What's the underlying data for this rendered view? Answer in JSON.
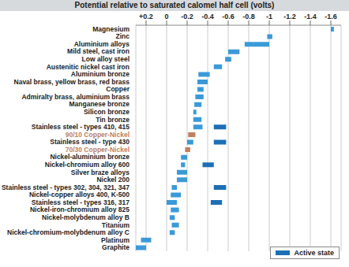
{
  "chart_data": {
    "type": "bar",
    "title": "Potential relative to saturated calomel half cell (volts)",
    "orientation": "horizontal",
    "categories": [
      "Magnesium",
      "Zinc",
      "Aluminium alloys",
      "Mild steel, cast iron",
      "Low alloy steel",
      "Austenitic nickel cast iron",
      "Aluminium bronze",
      "Naval brass, yellow brass, red brass",
      "Copper",
      "Admiralty brass, aluminium brass",
      "Manganese bronze",
      "Silicon bronze",
      "Tin bronze",
      "Stainless steel - types 410, 415",
      "90/10 Copper-Nickel",
      "Stainless steel - type 430",
      "70/30 Copper-Nickel",
      "Nickel-aluminium bronze",
      "Nickel-chromium alloy 600",
      "Silver braze alloys",
      "Nickel 200",
      "Stainless steel - types 302, 304, 321, 347",
      "Nickel-copper alloys 400, K-500",
      "Stainless steel - types 316, 317",
      "Nickel-iron-chromium alloy 825",
      "Nickel-molybdenum alloy B",
      "Titanium",
      "Nickel-chromium-molybdenum alloy C",
      "Platinum",
      "Graphite"
    ],
    "series": [
      {
        "color": "#3a9ad9",
        "colors": [
          "#3a9ad9",
          "#3a9ad9",
          "#3a9ad9",
          "#3a9ad9",
          "#3a9ad9",
          "#3a9ad9",
          "#3a9ad9",
          "#3a9ad9",
          "#3a9ad9",
          "#3a9ad9",
          "#3a9ad9",
          "#3a9ad9",
          "#3a9ad9",
          "#3a9ad9",
          "#c0805e",
          "#3a9ad9",
          "#c0805e",
          "#3a9ad9",
          "#3a9ad9",
          "#3a9ad9",
          "#3a9ad9",
          "#3a9ad9",
          "#3a9ad9",
          "#3a9ad9",
          "#3a9ad9",
          "#3a9ad9",
          "#3a9ad9",
          "#3a9ad9",
          "#3a9ad9",
          "#3a9ad9"
        ],
        "values": [
          [
            -1.6,
            -1.63
          ],
          [
            -0.98,
            -1.03
          ],
          [
            -0.76,
            -1.0
          ],
          [
            -0.6,
            -0.71
          ],
          [
            -0.57,
            -0.63
          ],
          [
            -0.46,
            -0.54
          ],
          [
            -0.31,
            -0.42
          ],
          [
            -0.3,
            -0.4
          ],
          [
            -0.3,
            -0.36
          ],
          [
            -0.28,
            -0.36
          ],
          [
            -0.27,
            -0.34
          ],
          [
            -0.26,
            -0.29
          ],
          [
            -0.26,
            -0.34
          ],
          [
            -0.26,
            -0.35
          ],
          [
            -0.21,
            -0.28
          ],
          [
            -0.2,
            -0.26
          ],
          [
            -0.18,
            -0.23
          ],
          [
            -0.14,
            -0.2
          ],
          [
            -0.14,
            -0.18
          ],
          [
            -0.1,
            -0.2
          ],
          [
            -0.1,
            -0.2
          ],
          [
            -0.05,
            -0.1
          ],
          [
            -0.04,
            -0.14
          ],
          [
            0,
            -0.1
          ],
          [
            -0.04,
            -0.12
          ],
          [
            -0.03,
            -0.08
          ],
          [
            -0.05,
            -0.12
          ],
          [
            -0.03,
            -0.08
          ],
          [
            0.25,
            0.15
          ],
          [
            0.3,
            0.2
          ]
        ]
      },
      {
        "name": "Active state",
        "color": "#1d6fb5",
        "values": [
          null,
          null,
          null,
          null,
          null,
          null,
          null,
          null,
          null,
          null,
          null,
          null,
          null,
          [
            -0.46,
            -0.58
          ],
          null,
          [
            -0.46,
            -0.58
          ],
          null,
          null,
          [
            -0.35,
            -0.46
          ],
          null,
          null,
          [
            -0.46,
            -0.58
          ],
          null,
          [
            -0.43,
            -0.54
          ],
          null,
          null,
          null,
          null,
          null,
          null
        ]
      }
    ],
    "xlim": [
      0.3,
      -1.7
    ],
    "xticks": [
      {
        "value": 0.2,
        "label": "+0.2"
      },
      0,
      -0.2,
      -0.4,
      -0.6,
      -0.8,
      -1.0,
      -1.2,
      -1.4,
      -1.6
    ],
    "grid": true,
    "legend": "bottom right"
  }
}
